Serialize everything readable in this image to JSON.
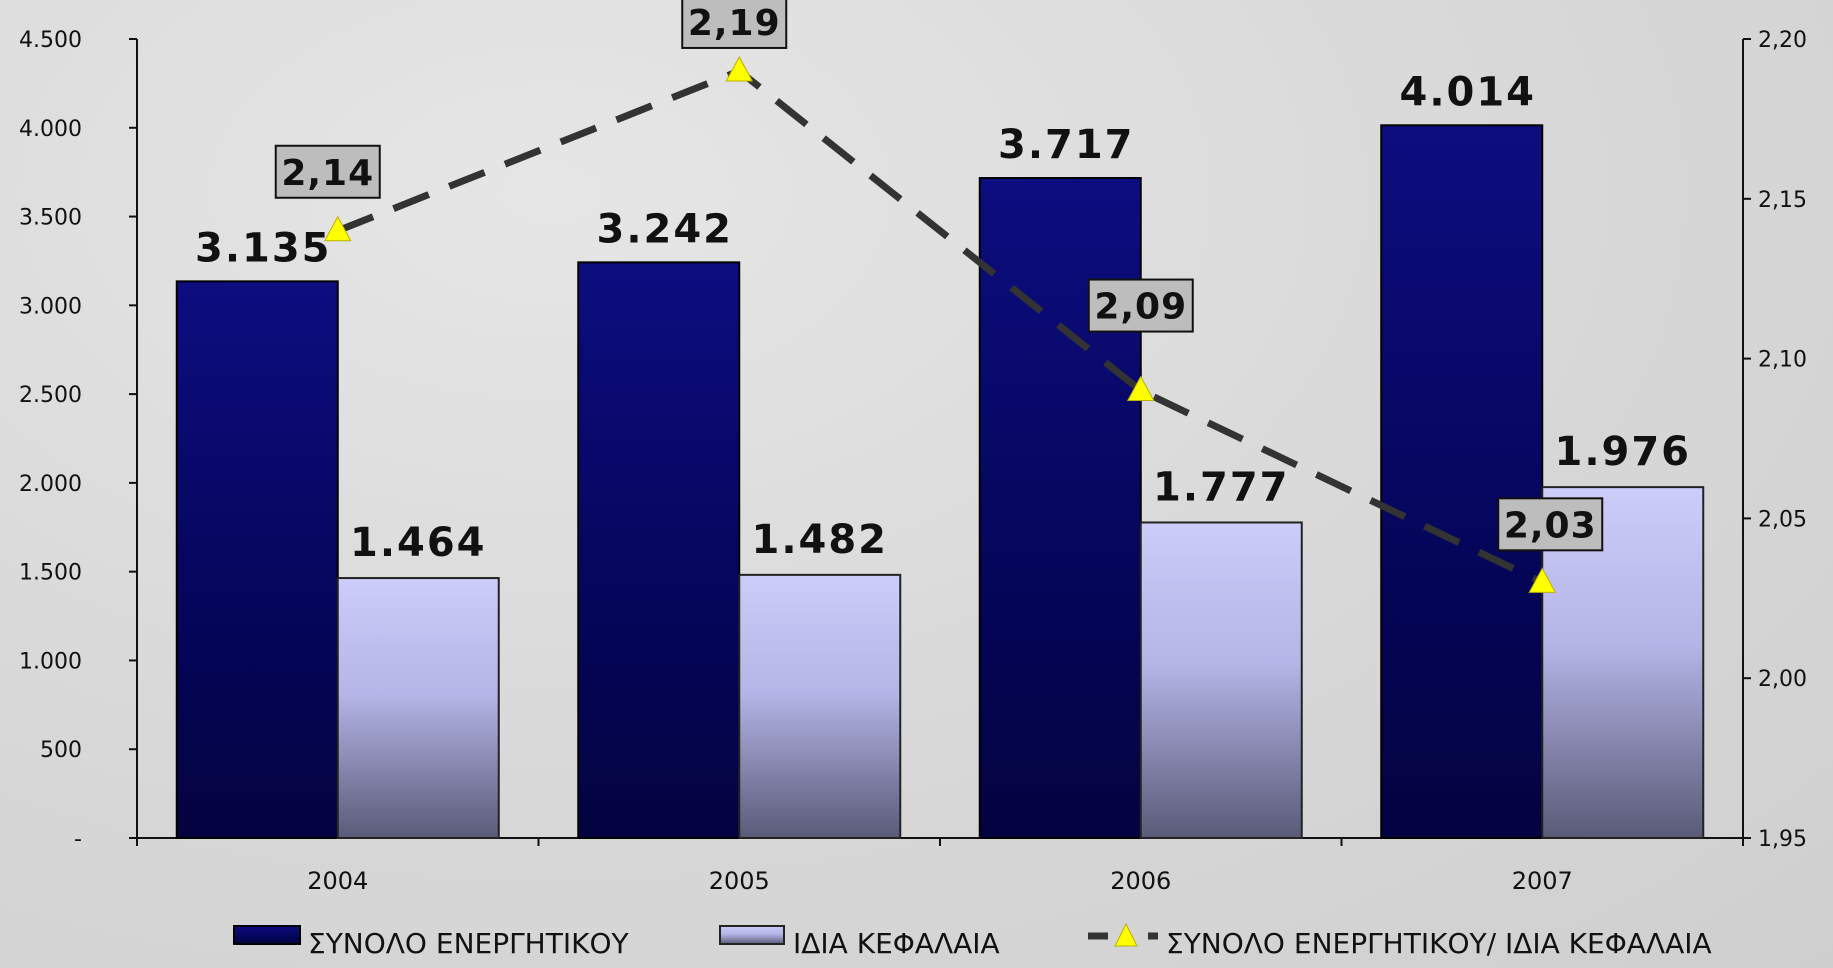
{
  "chart_data": {
    "type": "bar",
    "categories": [
      "2004",
      "2005",
      "2006",
      "2007"
    ],
    "series": [
      {
        "name": "ΣΥΝΟΛΟ ΕΝΕΡΓΗΤΙΚΟΥ",
        "type": "bar",
        "axis": "left",
        "values": [
          3135,
          3242,
          3717,
          4014
        ],
        "labels": [
          "3.135",
          "3.242",
          "3.717",
          "4.014"
        ],
        "color": "#0b0b6e"
      },
      {
        "name": "ΙΔΙΑ ΚΕΦΑΛΑΙΑ",
        "type": "bar",
        "axis": "left",
        "values": [
          1464,
          1482,
          1777,
          1976
        ],
        "labels": [
          "1.464",
          "1.482",
          "1.777",
          "1.976"
        ],
        "color": "#c8c8f8"
      },
      {
        "name": "ΣΥΝΟΛΟ ΕΝΕΡΓΗΤΙΚΟΥ/ ΙΔΙΑ ΚΕΦΑΛΑΙΑ",
        "type": "line",
        "axis": "right",
        "values": [
          2.14,
          2.19,
          2.09,
          2.03
        ],
        "labels": [
          "2,14",
          "2,19",
          "2,09",
          "2,03"
        ],
        "color": "#333333",
        "marker_color": "#ffff00"
      }
    ],
    "y_left": {
      "ylim": [
        0,
        4500
      ],
      "ticks": [
        "-",
        "500",
        "1.000",
        "1.500",
        "2.000",
        "2.500",
        "3.000",
        "3.500",
        "4.000",
        "4.500"
      ]
    },
    "y_right": {
      "ylim": [
        1.95,
        2.2
      ],
      "ticks": [
        "1,95",
        "2,00",
        "2,05",
        "2,10",
        "2,15",
        "2,20"
      ]
    },
    "legend_position": "bottom",
    "grid": false
  }
}
